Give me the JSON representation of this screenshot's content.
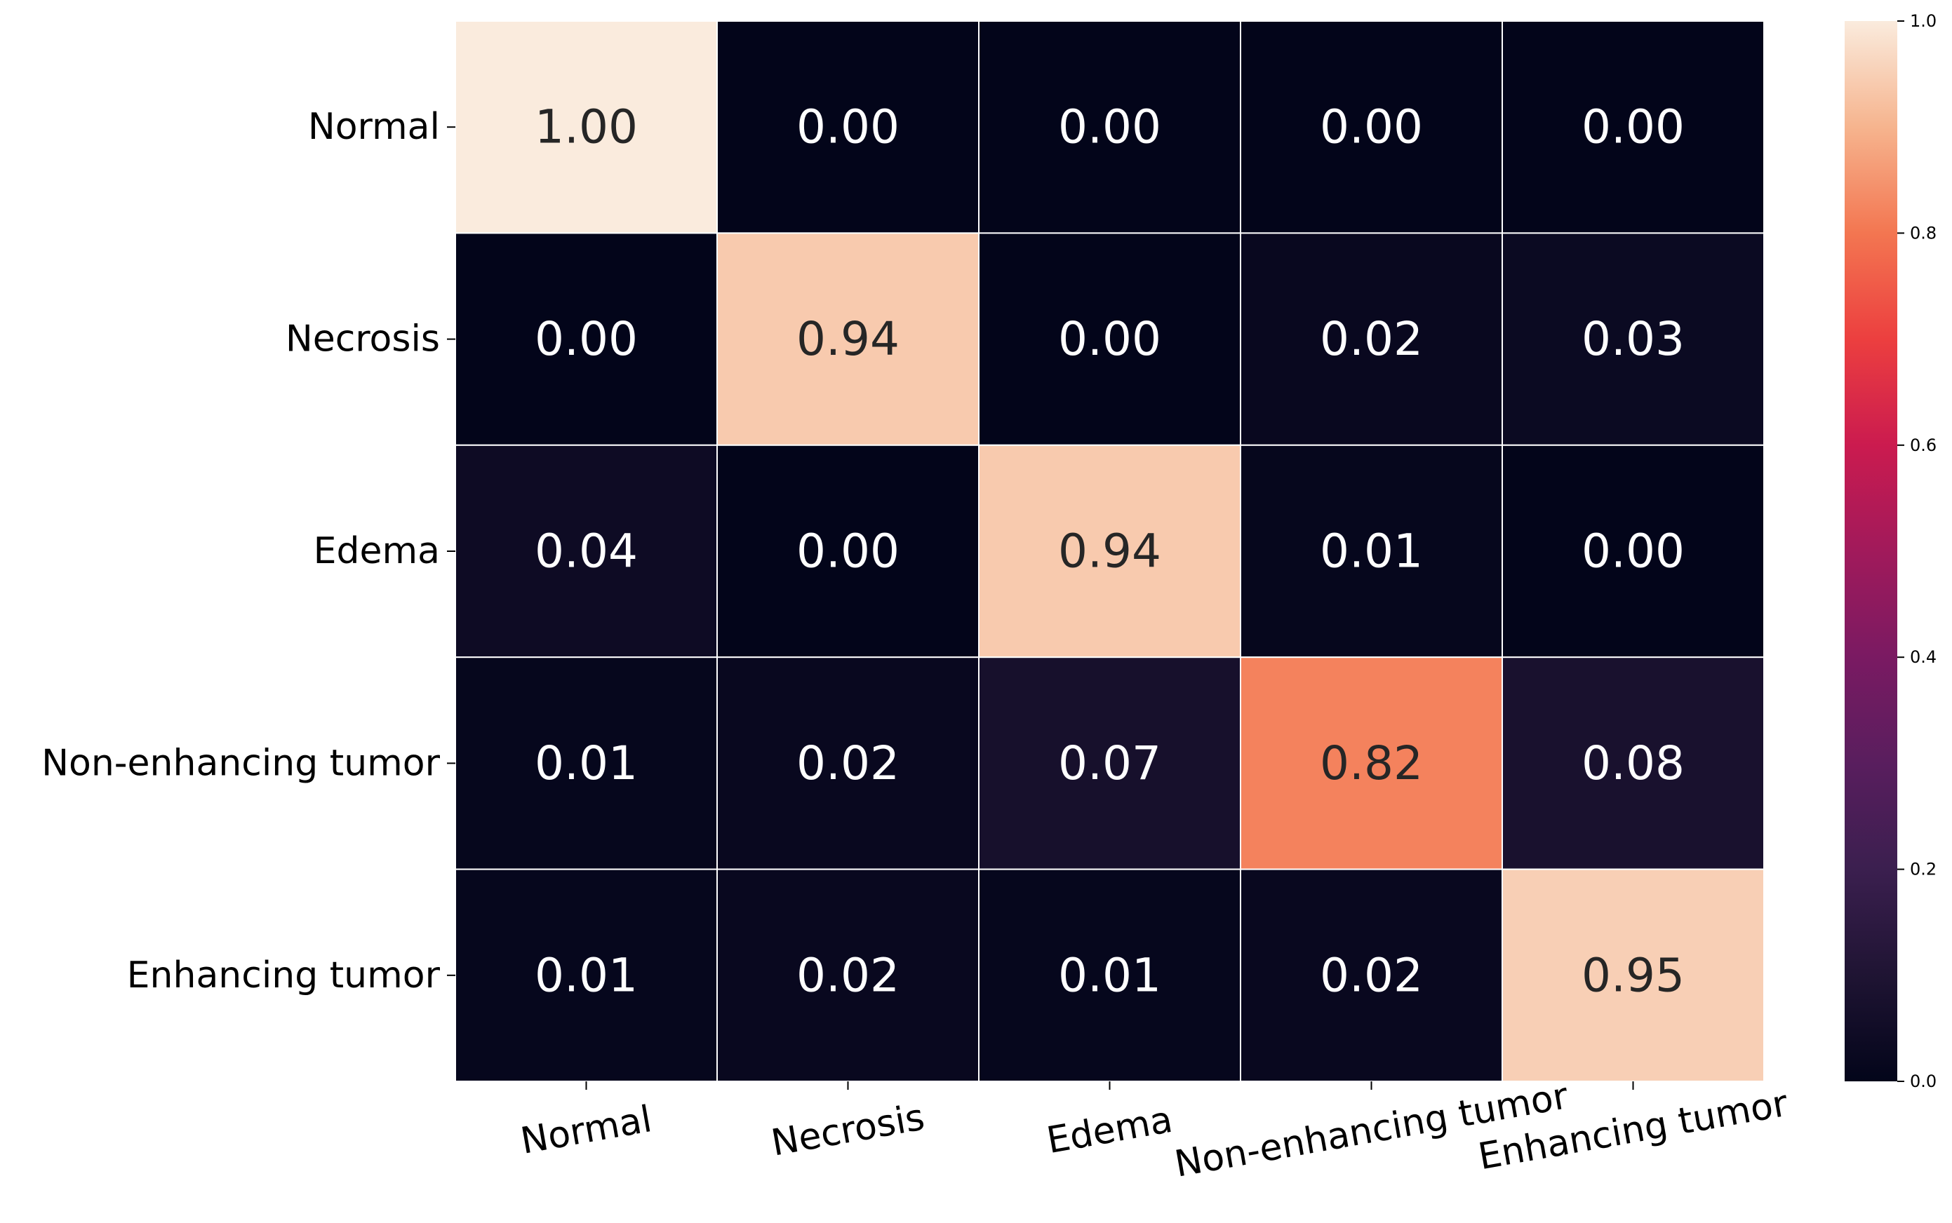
{
  "chart_data": {
    "type": "heatmap",
    "title": "",
    "xlabel": "",
    "ylabel": "",
    "x_categories": [
      "Normal",
      "Necrosis",
      "Edema",
      "Non-enhancing tumor",
      "Enhancing tumor"
    ],
    "y_categories": [
      "Normal",
      "Necrosis",
      "Edema",
      "Non-enhancing tumor",
      "Enhancing tumor"
    ],
    "matrix": [
      [
        1.0,
        0.0,
        0.0,
        0.0,
        0.0
      ],
      [
        0.0,
        0.94,
        0.0,
        0.02,
        0.03
      ],
      [
        0.04,
        0.0,
        0.94,
        0.01,
        0.0
      ],
      [
        0.01,
        0.02,
        0.07,
        0.82,
        0.08
      ],
      [
        0.01,
        0.02,
        0.01,
        0.02,
        0.95
      ]
    ],
    "value_format_decimals": 2,
    "colorbar": {
      "min": 0.0,
      "max": 1.0,
      "ticks": [
        "0.0",
        "0.2",
        "0.4",
        "0.6",
        "0.8",
        "1.0"
      ],
      "colormap": "rocket",
      "stops": [
        {
          "v": 0.0,
          "color": "#03051a"
        },
        {
          "v": 0.1,
          "color": "#1f1433"
        },
        {
          "v": 0.2,
          "color": "#3b1f4f"
        },
        {
          "v": 0.3,
          "color": "#591e5e"
        },
        {
          "v": 0.4,
          "color": "#7a1a62"
        },
        {
          "v": 0.5,
          "color": "#a11a5b"
        },
        {
          "v": 0.6,
          "color": "#cb1b4f"
        },
        {
          "v": 0.7,
          "color": "#ec3f3f"
        },
        {
          "v": 0.8,
          "color": "#f37651"
        },
        {
          "v": 0.9,
          "color": "#f6b48e"
        },
        {
          "v": 1.0,
          "color": "#faebdd"
        }
      ]
    },
    "cell_separator_color": "#ffffff",
    "text_color_dark": "#262626",
    "text_color_light": "#ffffff",
    "grid": false
  }
}
